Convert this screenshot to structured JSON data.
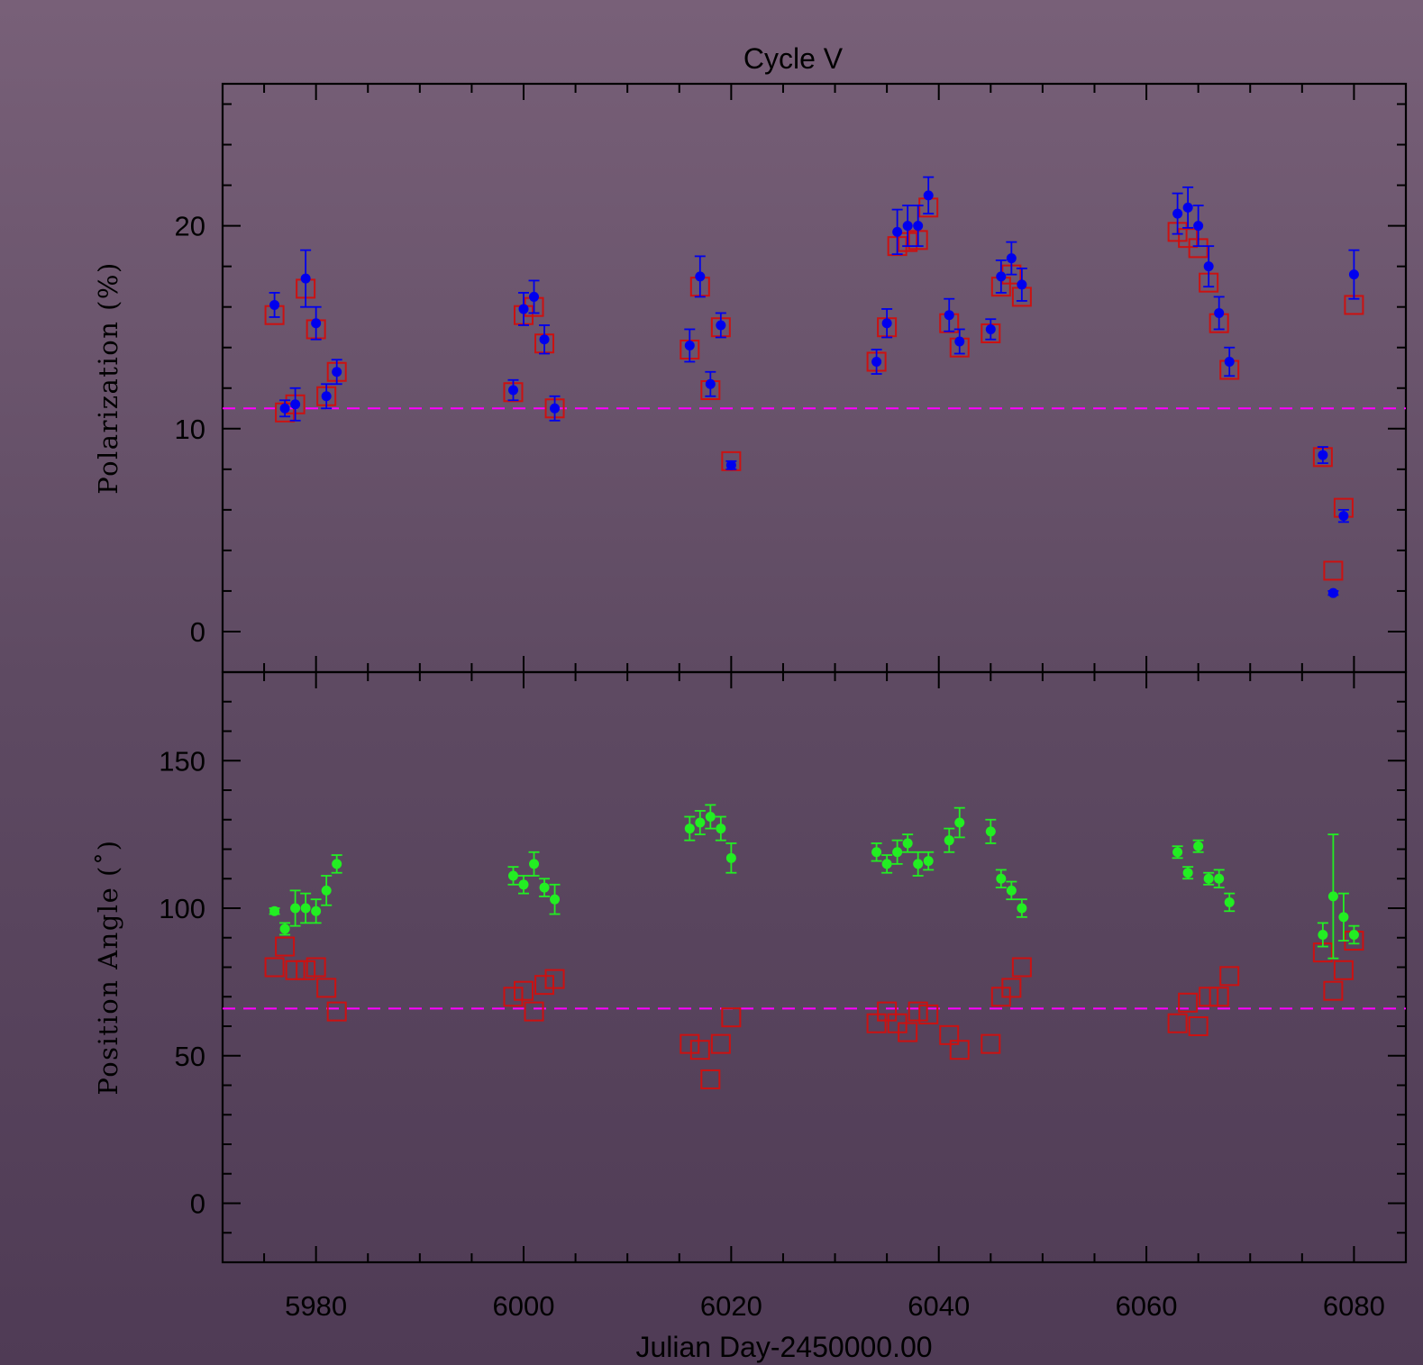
{
  "chart_data": {
    "type": "scatter",
    "title": "Cycle V",
    "xlabel": "Julian Day-2450000.00",
    "xlim": [
      5971,
      6085
    ],
    "x_ticks": [
      5980,
      6000,
      6020,
      6040,
      6060,
      6080
    ],
    "colors": {
      "model": "#cc1111",
      "polarization_obs": "#0000ee",
      "angle_obs": "#22ee22",
      "mean_line": "#ff00ff",
      "axes": "#000000"
    },
    "panels": [
      {
        "id": "polarization",
        "ylabel": "Polarization  (%)",
        "ylim": [
          -2,
          27
        ],
        "y_ticks": [
          0,
          10,
          20
        ],
        "mean_level": 11.0,
        "series": [
          {
            "type": "model_squares",
            "points": [
              [
                5976,
                15.6
              ],
              [
                5977,
                10.8
              ],
              [
                5978,
                11.2
              ],
              [
                5979,
                16.9
              ],
              [
                5980,
                14.9
              ],
              [
                5981,
                11.6
              ],
              [
                5982,
                12.8
              ],
              [
                5999,
                11.8
              ],
              [
                6000,
                15.6
              ],
              [
                6001,
                16.0
              ],
              [
                6002,
                14.2
              ],
              [
                6003,
                11.0
              ],
              [
                6016,
                13.9
              ],
              [
                6017,
                17.0
              ],
              [
                6018,
                11.9
              ],
              [
                6019,
                15.0
              ],
              [
                6020,
                8.4
              ],
              [
                6034,
                13.3
              ],
              [
                6035,
                15.0
              ],
              [
                6036,
                19.0
              ],
              [
                6037,
                19.2
              ],
              [
                6038,
                19.3
              ],
              [
                6039,
                20.9
              ],
              [
                6041,
                15.2
              ],
              [
                6042,
                14.0
              ],
              [
                6045,
                14.7
              ],
              [
                6046,
                17.0
              ],
              [
                6047,
                17.6
              ],
              [
                6048,
                16.5
              ],
              [
                6063,
                19.7
              ],
              [
                6064,
                19.4
              ],
              [
                6065,
                18.9
              ],
              [
                6066,
                17.2
              ],
              [
                6067,
                15.2
              ],
              [
                6068,
                12.9
              ],
              [
                6077,
                8.6
              ],
              [
                6078,
                3.0
              ],
              [
                6079,
                6.1
              ],
              [
                6080,
                16.1
              ]
            ]
          },
          {
            "type": "observed_points",
            "points": [
              [
                5976,
                16.1,
                0.6
              ],
              [
                5977,
                11.0,
                0.4
              ],
              [
                5978,
                11.2,
                0.8
              ],
              [
                5979,
                17.4,
                1.4
              ],
              [
                5980,
                15.2,
                0.8
              ],
              [
                5981,
                11.6,
                0.6
              ],
              [
                5982,
                12.8,
                0.6
              ],
              [
                5999,
                11.9,
                0.5
              ],
              [
                6000,
                15.9,
                0.8
              ],
              [
                6001,
                16.5,
                0.8
              ],
              [
                6002,
                14.4,
                0.7
              ],
              [
                6003,
                11.0,
                0.6
              ],
              [
                6016,
                14.1,
                0.8
              ],
              [
                6017,
                17.5,
                1.0
              ],
              [
                6018,
                12.2,
                0.6
              ],
              [
                6019,
                15.1,
                0.6
              ],
              [
                6020,
                8.2,
                0.2
              ],
              [
                6034,
                13.3,
                0.6
              ],
              [
                6035,
                15.2,
                0.7
              ],
              [
                6036,
                19.7,
                1.1
              ],
              [
                6037,
                20.0,
                1.0
              ],
              [
                6038,
                20.0,
                1.0
              ],
              [
                6039,
                21.5,
                0.9
              ],
              [
                6041,
                15.6,
                0.8
              ],
              [
                6042,
                14.3,
                0.6
              ],
              [
                6045,
                14.9,
                0.5
              ],
              [
                6046,
                17.5,
                0.8
              ],
              [
                6047,
                18.4,
                0.8
              ],
              [
                6048,
                17.1,
                0.8
              ],
              [
                6063,
                20.6,
                1.0
              ],
              [
                6064,
                20.9,
                1.0
              ],
              [
                6065,
                20.0,
                1.0
              ],
              [
                6066,
                18.0,
                1.0
              ],
              [
                6067,
                15.7,
                0.8
              ],
              [
                6068,
                13.3,
                0.7
              ],
              [
                6077,
                8.7,
                0.4
              ],
              [
                6078,
                1.9,
                0.1
              ],
              [
                6079,
                5.7,
                0.3
              ],
              [
                6080,
                17.6,
                1.2
              ]
            ]
          }
        ]
      },
      {
        "id": "position_angle",
        "ylabel": "Position  Angle   (˚)",
        "ylim": [
          -20,
          180
        ],
        "y_ticks": [
          0,
          50,
          100,
          150
        ],
        "mean_level": 66,
        "series": [
          {
            "type": "model_squares",
            "points": [
              [
                5976,
                80
              ],
              [
                5977,
                87
              ],
              [
                5978,
                79
              ],
              [
                5979,
                79
              ],
              [
                5980,
                80
              ],
              [
                5981,
                73
              ],
              [
                5982,
                65
              ],
              [
                5999,
                70
              ],
              [
                6000,
                72
              ],
              [
                6001,
                65
              ],
              [
                6002,
                74
              ],
              [
                6003,
                76
              ],
              [
                6016,
                54
              ],
              [
                6017,
                52
              ],
              [
                6018,
                42
              ],
              [
                6019,
                54
              ],
              [
                6020,
                63
              ],
              [
                6034,
                61
              ],
              [
                6035,
                65
              ],
              [
                6036,
                61
              ],
              [
                6037,
                58
              ],
              [
                6038,
                65
              ],
              [
                6039,
                64
              ],
              [
                6041,
                57
              ],
              [
                6042,
                52
              ],
              [
                6045,
                54
              ],
              [
                6046,
                70
              ],
              [
                6047,
                73
              ],
              [
                6048,
                80
              ],
              [
                6063,
                61
              ],
              [
                6064,
                68
              ],
              [
                6065,
                60
              ],
              [
                6066,
                70
              ],
              [
                6067,
                70
              ],
              [
                6068,
                77
              ],
              [
                6077,
                85
              ],
              [
                6078,
                72
              ],
              [
                6079,
                79
              ],
              [
                6080,
                89
              ]
            ]
          },
          {
            "type": "observed_points",
            "points": [
              [
                5976,
                99,
                1
              ],
              [
                5977,
                93,
                2
              ],
              [
                5978,
                100,
                6
              ],
              [
                5979,
                100,
                5
              ],
              [
                5980,
                99,
                4
              ],
              [
                5981,
                106,
                5
              ],
              [
                5982,
                115,
                3
              ],
              [
                5999,
                111,
                3
              ],
              [
                6000,
                108,
                3
              ],
              [
                6001,
                115,
                4
              ],
              [
                6002,
                107,
                3
              ],
              [
                6003,
                103,
                5
              ],
              [
                6016,
                127,
                4
              ],
              [
                6017,
                129,
                4
              ],
              [
                6018,
                131,
                4
              ],
              [
                6019,
                127,
                4
              ],
              [
                6020,
                117,
                5
              ],
              [
                6034,
                119,
                3
              ],
              [
                6035,
                115,
                3
              ],
              [
                6036,
                119,
                4
              ],
              [
                6037,
                122,
                3
              ],
              [
                6038,
                115,
                4
              ],
              [
                6039,
                116,
                3
              ],
              [
                6041,
                123,
                4
              ],
              [
                6042,
                129,
                5
              ],
              [
                6045,
                126,
                4
              ],
              [
                6046,
                110,
                3
              ],
              [
                6047,
                106,
                3
              ],
              [
                6048,
                100,
                3
              ],
              [
                6063,
                119,
                2
              ],
              [
                6064,
                112,
                2
              ],
              [
                6065,
                121,
                2
              ],
              [
                6066,
                110,
                2
              ],
              [
                6067,
                110,
                3
              ],
              [
                6068,
                102,
                3
              ],
              [
                6077,
                91,
                4
              ],
              [
                6078,
                104,
                21
              ],
              [
                6079,
                97,
                8
              ],
              [
                6080,
                91,
                3
              ]
            ]
          }
        ]
      }
    ]
  }
}
